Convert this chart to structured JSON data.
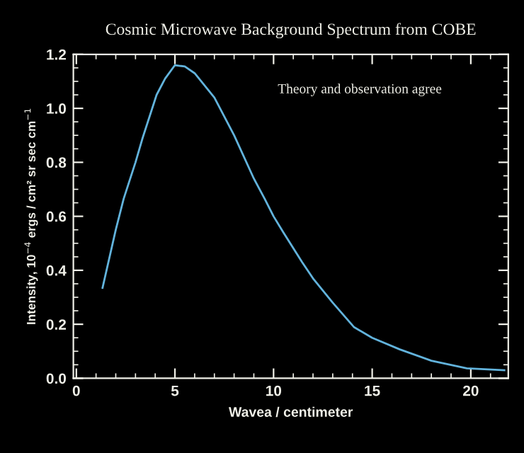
{
  "chart_data": {
    "type": "line",
    "title": "Cosmic Microwave Background Spectrum from COBE",
    "xlabel": "Wavea / centimeter",
    "ylabel": "Intensity, 10$^{−4}$ ergs / cm² sr sec cm$^{−1}$",
    "annotations": [
      "Theory and observation agree"
    ],
    "series": [
      {
        "color": "#62b3dc",
        "x": [
          1.33,
          2,
          2.4,
          3,
          3.36,
          4.07,
          4.5,
          5.0,
          5.5,
          6,
          7,
          8,
          9,
          9.55,
          10,
          10.5,
          11.45,
          12,
          13,
          14.07,
          15,
          16.4,
          18,
          19.8,
          21.7
        ],
        "values": [
          0.335,
          0.55,
          0.665,
          0.8,
          0.89,
          1.05,
          1.11,
          1.16,
          1.155,
          1.13,
          1.04,
          0.9,
          0.74,
          0.665,
          0.6,
          0.54,
          0.43,
          0.37,
          0.28,
          0.19,
          0.15,
          0.107,
          0.065,
          0.037,
          0.03
        ]
      }
    ],
    "xlim": [
      -0.15,
      21.9
    ],
    "ylim": [
      0,
      1.2
    ],
    "xticks": [
      0,
      5,
      10,
      15,
      20
    ],
    "yticks": [
      {
        "value": 0,
        "label": "0.0"
      },
      0.2,
      0.4,
      0.6,
      0.8,
      {
        "value": 1,
        "label": "1.0"
      },
      1.2
    ],
    "grid": false,
    "legend": false,
    "marker": "none",
    "line_style": "solid"
  }
}
